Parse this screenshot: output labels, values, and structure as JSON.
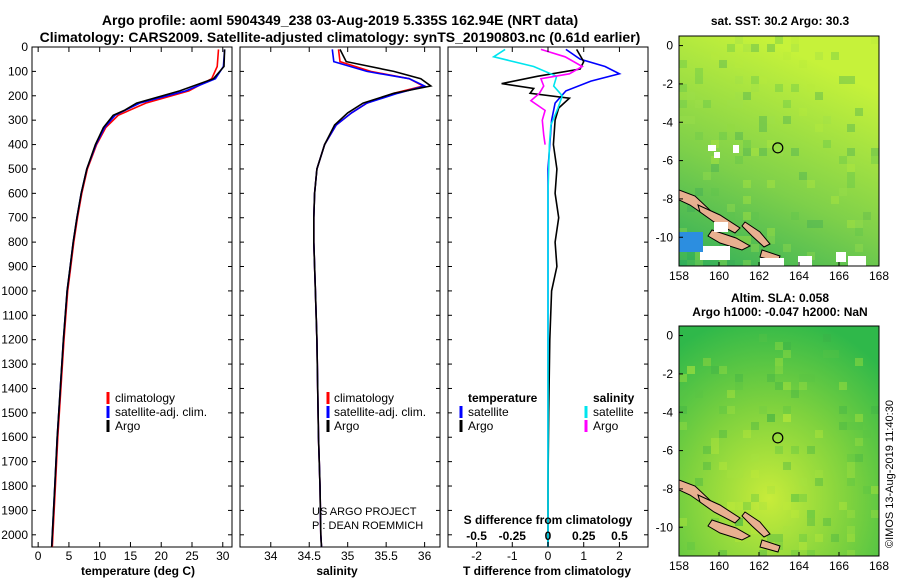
{
  "header": {
    "line1": "Argo profile: aoml 5904349_238 03-Aug-2019 5.335S 162.94E (NRT data)",
    "line2": "Climatology: CARS2009. Satellite-adjusted climatology: synTS_20190803.nc (0.61d earlier)"
  },
  "colors": {
    "climatology": "#ff0000",
    "satellite": "#0000ff",
    "argo": "#000000",
    "sat_salinity": "#00e5ee",
    "argo_salinity": "#ff00ff",
    "land": "#e8b090",
    "sst_low": "#2fae5a",
    "sst_high": "#c6f23a",
    "sla_low": "#2fb84a",
    "sla_high": "#c8ec3a"
  },
  "depth_axis": {
    "ticks": [
      "0",
      "100",
      "200",
      "300",
      "400",
      "500",
      "600",
      "700",
      "800",
      "900",
      "1000",
      "1100",
      "1200",
      "1300",
      "1400",
      "1500",
      "1600",
      "1700",
      "1800",
      "1900",
      "2000"
    ]
  },
  "chart_data": [
    {
      "type": "line",
      "name": "temperature-profile",
      "xlabel": "temperature (deg C)",
      "xlim": [
        -1,
        31.5
      ],
      "ylim": [
        0,
        2050
      ],
      "xticks": [
        0,
        5,
        10,
        15,
        20,
        25,
        30
      ],
      "xtick_labels": [
        "0",
        "5",
        "10",
        "15",
        "20",
        "25",
        "30"
      ],
      "legend": [
        "climatology",
        "satellite-adj. clim.",
        "Argo"
      ],
      "series": [
        {
          "name": "climatology",
          "color": "#ff0000",
          "depth": [
            10,
            80,
            130,
            180,
            230,
            280,
            330,
            400,
            500,
            600,
            700,
            800,
            900,
            1000,
            1200,
            1400,
            1600,
            1800,
            2000,
            2050
          ],
          "values": [
            29.3,
            29.1,
            28.2,
            24.5,
            17.5,
            13.0,
            11.0,
            9.5,
            8.0,
            7.1,
            6.4,
            5.8,
            5.3,
            4.8,
            4.2,
            3.7,
            3.2,
            2.8,
            2.4,
            2.3
          ]
        },
        {
          "name": "satellite-adj. clim.",
          "color": "#0000ff",
          "depth": [
            10,
            80,
            130,
            180,
            230,
            280,
            330,
            400,
            500,
            600,
            700,
            800,
            900,
            1000,
            1200,
            1400,
            1600,
            1800,
            2000,
            2050
          ],
          "values": [
            30.3,
            30.1,
            28.8,
            24.0,
            16.5,
            12.5,
            10.8,
            9.4,
            7.9,
            7.0,
            6.3,
            5.7,
            5.2,
            4.7,
            4.1,
            3.6,
            3.1,
            2.7,
            2.3,
            2.2
          ]
        },
        {
          "name": "Argo",
          "color": "#000000",
          "depth": [
            10,
            80,
            130,
            180,
            230,
            260,
            280,
            330,
            400,
            500,
            600,
            700,
            800,
            900,
            1000,
            1200,
            1400,
            1600,
            1800,
            2000,
            2050
          ],
          "values": [
            30.3,
            30.2,
            28.5,
            23.0,
            16.0,
            14.0,
            12.2,
            10.6,
            9.3,
            7.9,
            7.0,
            6.3,
            5.7,
            5.2,
            4.7,
            4.1,
            3.6,
            3.1,
            2.7,
            2.3,
            2.2
          ]
        }
      ]
    },
    {
      "type": "line",
      "name": "salinity-profile",
      "xlabel": "salinity",
      "xlim": [
        33.6,
        36.2
      ],
      "ylim": [
        0,
        2050
      ],
      "xticks": [
        34,
        34.5,
        35,
        35.5,
        36
      ],
      "xtick_labels": [
        "34",
        "34.5",
        "35",
        "35.5",
        "36"
      ],
      "legend": [
        "climatology",
        "satellite-adj. clim.",
        "Argo"
      ],
      "annotations": [
        "US ARGO PROJECT",
        "PI: DEAN ROEMMICH"
      ],
      "series": [
        {
          "name": "climatology",
          "color": "#ff0000",
          "depth": [
            10,
            60,
            100,
            130,
            160,
            190,
            230,
            270,
            320,
            400,
            500,
            600,
            700,
            800,
            900,
            1000,
            1200,
            1400,
            1600,
            1800,
            2000,
            2050
          ],
          "values": [
            34.88,
            34.9,
            35.3,
            35.8,
            35.98,
            35.6,
            35.25,
            35.05,
            34.85,
            34.7,
            34.6,
            34.57,
            34.56,
            34.56,
            34.57,
            34.58,
            34.6,
            34.61,
            34.62,
            34.64,
            34.65,
            34.66
          ]
        },
        {
          "name": "satellite-adj. clim.",
          "color": "#0000ff",
          "depth": [
            10,
            60,
            100,
            130,
            160,
            190,
            230,
            270,
            320,
            400,
            500,
            600,
            700,
            800,
            900,
            1000,
            1200,
            1400,
            1600,
            1800,
            2000,
            2050
          ],
          "values": [
            34.8,
            34.82,
            35.25,
            35.8,
            36.0,
            35.65,
            35.25,
            35.05,
            34.85,
            34.7,
            34.6,
            34.57,
            34.56,
            34.56,
            34.57,
            34.58,
            34.6,
            34.61,
            34.62,
            34.64,
            34.65,
            34.66
          ]
        },
        {
          "name": "Argo",
          "color": "#000000",
          "depth": [
            10,
            60,
            100,
            130,
            160,
            190,
            230,
            270,
            320,
            400,
            500,
            600,
            700,
            800,
            900,
            1000,
            1200,
            1400,
            1600,
            1800,
            2000,
            2050
          ],
          "values": [
            34.9,
            34.98,
            35.6,
            35.95,
            36.08,
            35.6,
            35.2,
            35.0,
            34.83,
            34.7,
            34.6,
            34.57,
            34.56,
            34.56,
            34.57,
            34.58,
            34.6,
            34.61,
            34.62,
            34.64,
            34.65,
            34.66
          ]
        }
      ]
    },
    {
      "type": "line",
      "name": "difference-profile",
      "xlabel": "T difference from climatology",
      "xlabel2": "S difference from climatology",
      "xlim": [
        -2.8,
        2.8
      ],
      "ylim": [
        0,
        2050
      ],
      "xticks": [
        -2,
        -1,
        0,
        1,
        2
      ],
      "xtick_labels": [
        "-2",
        "-1",
        "0",
        "1",
        "2"
      ],
      "s_ticks": [
        -0.5,
        -0.25,
        0,
        0.25,
        0.5
      ],
      "s_tick_labels": [
        "-0.5",
        "-0.25",
        "0",
        "0.25",
        "0.5"
      ],
      "legend_left_title": "temperature",
      "legend_right_title": "salinity",
      "legend_left": [
        "satellite",
        "Argo"
      ],
      "legend_right": [
        "satellite",
        "Argo"
      ],
      "series": [
        {
          "name": "T satellite",
          "color": "#0000ff",
          "depth": [
            10,
            50,
            80,
            110,
            140,
            180,
            230,
            300,
            400,
            500,
            700,
            900,
            1200,
            1500,
            1800,
            2050
          ],
          "values": [
            0.5,
            0.9,
            1.6,
            2.0,
            1.2,
            0.5,
            0.2,
            0.1,
            0.05,
            0.0,
            0.0,
            0.0,
            0.0,
            0.0,
            0.0,
            0.0
          ]
        },
        {
          "name": "T Argo",
          "color": "#000000",
          "depth": [
            10,
            60,
            90,
            120,
            150,
            170,
            190,
            210,
            250,
            300,
            400,
            500,
            600,
            700,
            800,
            900,
            1000,
            1200,
            1500,
            1800,
            2050
          ],
          "values": [
            0.8,
            1.0,
            0.9,
            -0.3,
            -1.3,
            -0.4,
            -0.5,
            0.6,
            0.3,
            0.2,
            0.15,
            0.25,
            0.2,
            0.3,
            0.2,
            0.25,
            0.1,
            0.05,
            0.02,
            0.0,
            0.0
          ]
        },
        {
          "name": "S satellite",
          "color": "#00e5ee",
          "depth": [
            10,
            40,
            80,
            120,
            160,
            200,
            250,
            320,
            400,
            600,
            800,
            1000,
            1400,
            1800,
            2050
          ],
          "values": [
            -0.3,
            -0.38,
            -0.1,
            0.06,
            0.04,
            0.1,
            0.07,
            0.02,
            0.01,
            0.0,
            0.0,
            0.0,
            0.0,
            0.0,
            0.0
          ]
        },
        {
          "name": "S Argo",
          "color": "#ff00ff",
          "depth": [
            10,
            40,
            80,
            110,
            130,
            160,
            190,
            220,
            260,
            300,
            360,
            400
          ],
          "values": [
            -0.05,
            0.12,
            0.24,
            0.15,
            -0.05,
            -0.03,
            -0.06,
            -0.12,
            -0.02,
            -0.04,
            -0.03,
            -0.02
          ]
        }
      ]
    },
    {
      "type": "heatmap",
      "name": "sst-map",
      "title": "sat. SST: 30.2 Argo: 30.3",
      "xlim": [
        158,
        168
      ],
      "ylim": [
        -11.5,
        0.5
      ],
      "xticks": [
        158,
        160,
        162,
        164,
        166,
        168
      ],
      "xtick_labels": [
        "158",
        "160",
        "162",
        "164",
        "166",
        "168"
      ],
      "yticks": [
        0,
        -2,
        -4,
        -6,
        -8,
        -10
      ],
      "ytick_labels": [
        "0",
        "-2",
        "-4",
        "-6",
        "-8",
        "-10"
      ],
      "float_position": [
        162.94,
        -5.335
      ]
    },
    {
      "type": "heatmap",
      "name": "sla-map",
      "title": "Altim. SLA: 0.058",
      "subtitle": "Argo h1000: -0.047 h2000: NaN",
      "xlim": [
        158,
        168
      ],
      "ylim": [
        -11.5,
        0.5
      ],
      "xticks": [
        158,
        160,
        162,
        164,
        166,
        168
      ],
      "xtick_labels": [
        "158",
        "160",
        "162",
        "164",
        "166",
        "168"
      ],
      "yticks": [
        0,
        -2,
        -4,
        -6,
        -8,
        -10
      ],
      "ytick_labels": [
        "0",
        "-2",
        "-4",
        "-6",
        "-8",
        "-10"
      ],
      "float_position": [
        162.94,
        -5.335
      ]
    }
  ],
  "watermark": "©IMOS 13-Aug-2019 11:40:30"
}
